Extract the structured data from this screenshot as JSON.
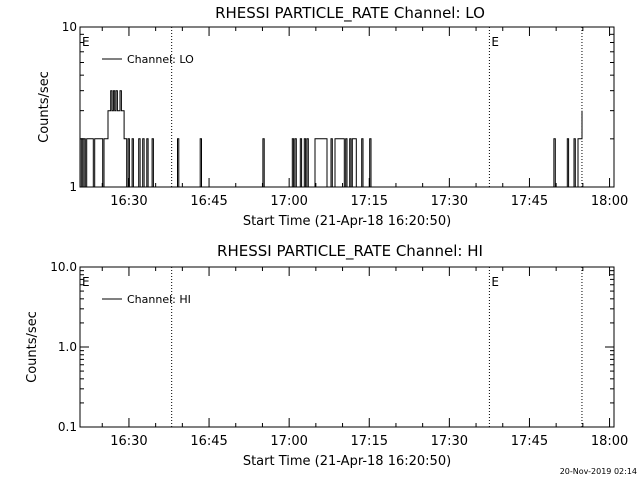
{
  "chart_data": [
    {
      "type": "line",
      "title": "RHESSI PARTICLE_RATE Channel: LO",
      "xlabel": "Start Time (21-Apr-18 16:20:50)",
      "ylabel": "Counts/sec",
      "yscale": "log",
      "ylim": [
        1,
        10
      ],
      "xlim": [
        "16:20:50",
        "18:00:50"
      ],
      "x_ticks": [
        "16:30",
        "16:45",
        "17:00",
        "17:15",
        "17:30",
        "17:45",
        "18:00"
      ],
      "y_ticks": [
        "1",
        "10"
      ],
      "legend": "Channel: LO",
      "legend_position": "top-left",
      "event_markers": [
        {
          "label": "E",
          "time": "16:20:50"
        },
        {
          "label": "",
          "time": "16:38:00"
        },
        {
          "label": "E",
          "time": "17:37:30"
        },
        {
          "label": "",
          "time": "17:54:50"
        }
      ],
      "series": [
        {
          "values": [
            [
              "16:20:50",
              1
            ],
            [
              "16:21:05",
              2
            ],
            [
              "16:21:20",
              1
            ],
            [
              "16:21:35",
              2
            ],
            [
              "16:21:50",
              1
            ],
            [
              "16:22:05",
              2
            ],
            [
              "16:23:05",
              2
            ],
            [
              "16:23:20",
              1
            ],
            [
              "16:23:35",
              2
            ],
            [
              "16:24:50",
              2
            ],
            [
              "16:25:05",
              1
            ],
            [
              "16:25:20",
              2
            ],
            [
              "16:25:35",
              2
            ],
            [
              "16:26:05",
              3
            ],
            [
              "16:26:35",
              4
            ],
            [
              "16:26:50",
              3
            ],
            [
              "16:27:05",
              4
            ],
            [
              "16:27:20",
              3
            ],
            [
              "16:27:35",
              4
            ],
            [
              "16:27:50",
              3
            ],
            [
              "16:28:20",
              4
            ],
            [
              "16:28:35",
              3
            ],
            [
              "16:29:05",
              2
            ],
            [
              "16:29:35",
              1
            ],
            [
              "16:29:50",
              2
            ],
            [
              "16:30:05",
              1
            ],
            [
              "16:30:35",
              2
            ],
            [
              "16:30:50",
              1
            ],
            [
              "16:31:50",
              2
            ],
            [
              "16:32:05",
              1
            ],
            [
              "16:32:35",
              2
            ],
            [
              "16:32:50",
              1
            ],
            [
              "16:33:20",
              2
            ],
            [
              "16:33:35",
              1
            ],
            [
              "16:34:05",
              1
            ],
            [
              "16:34:20",
              2
            ],
            [
              "16:34:35",
              1
            ],
            [
              "16:38:50",
              1
            ],
            [
              "16:39:05",
              2
            ],
            [
              "16:39:20",
              1
            ],
            [
              "16:43:05",
              1
            ],
            [
              "16:43:20",
              2
            ],
            [
              "16:43:35",
              1
            ],
            [
              "16:54:50",
              1
            ],
            [
              "16:55:05",
              2
            ],
            [
              "16:55:20",
              1
            ],
            [
              "17:00:20",
              1
            ],
            [
              "17:00:35",
              2
            ],
            [
              "17:00:50",
              1
            ],
            [
              "17:01:05",
              2
            ],
            [
              "17:01:20",
              1
            ],
            [
              "17:02:05",
              2
            ],
            [
              "17:02:20",
              1
            ],
            [
              "17:02:50",
              2
            ],
            [
              "17:03:05",
              1
            ],
            [
              "17:03:20",
              2
            ],
            [
              "17:03:35",
              1
            ],
            [
              "17:04:35",
              1
            ],
            [
              "17:04:50",
              2
            ],
            [
              "17:06:50",
              2
            ],
            [
              "17:07:05",
              1
            ],
            [
              "17:07:50",
              2
            ],
            [
              "17:08:05",
              1
            ],
            [
              "17:08:35",
              2
            ],
            [
              "17:10:05",
              2
            ],
            [
              "17:10:20",
              1
            ],
            [
              "17:10:35",
              2
            ],
            [
              "17:10:50",
              1
            ],
            [
              "17:11:20",
              2
            ],
            [
              "17:11:35",
              1
            ],
            [
              "17:11:50",
              2
            ],
            [
              "17:12:20",
              2
            ],
            [
              "17:12:35",
              1
            ],
            [
              "17:13:20",
              1
            ],
            [
              "17:13:35",
              2
            ],
            [
              "17:13:50",
              1
            ],
            [
              "17:14:50",
              1
            ],
            [
              "17:15:05",
              2
            ],
            [
              "17:15:20",
              1
            ],
            [
              "17:49:20",
              1
            ],
            [
              "17:49:35",
              2
            ],
            [
              "17:49:50",
              1
            ],
            [
              "17:51:50",
              1
            ],
            [
              "17:52:05",
              2
            ],
            [
              "17:52:20",
              1
            ],
            [
              "17:53:05",
              1
            ],
            [
              "17:53:20",
              2
            ],
            [
              "17:53:35",
              1
            ],
            [
              "17:54:05",
              2
            ],
            [
              "17:54:50",
              3
            ]
          ]
        }
      ]
    },
    {
      "type": "line",
      "title": "RHESSI PARTICLE_RATE Channel: HI",
      "xlabel": "Start Time (21-Apr-18 16:20:50)",
      "ylabel": "Counts/sec",
      "yscale": "log",
      "ylim": [
        0.1,
        10
      ],
      "xlim": [
        "16:20:50",
        "18:00:50"
      ],
      "x_ticks": [
        "16:30",
        "16:45",
        "17:00",
        "17:15",
        "17:30",
        "17:45",
        "18:00"
      ],
      "y_ticks": [
        "0.1",
        "1.0",
        "10.0"
      ],
      "legend": "Channel: HI",
      "legend_position": "top-left",
      "event_markers": [
        {
          "label": "E",
          "time": "16:20:50"
        },
        {
          "label": "",
          "time": "16:38:00"
        },
        {
          "label": "E",
          "time": "17:37:30"
        },
        {
          "label": "",
          "time": "17:54:50"
        }
      ],
      "series": []
    }
  ],
  "footer_timestamp": "20-Nov-2019 02:14"
}
